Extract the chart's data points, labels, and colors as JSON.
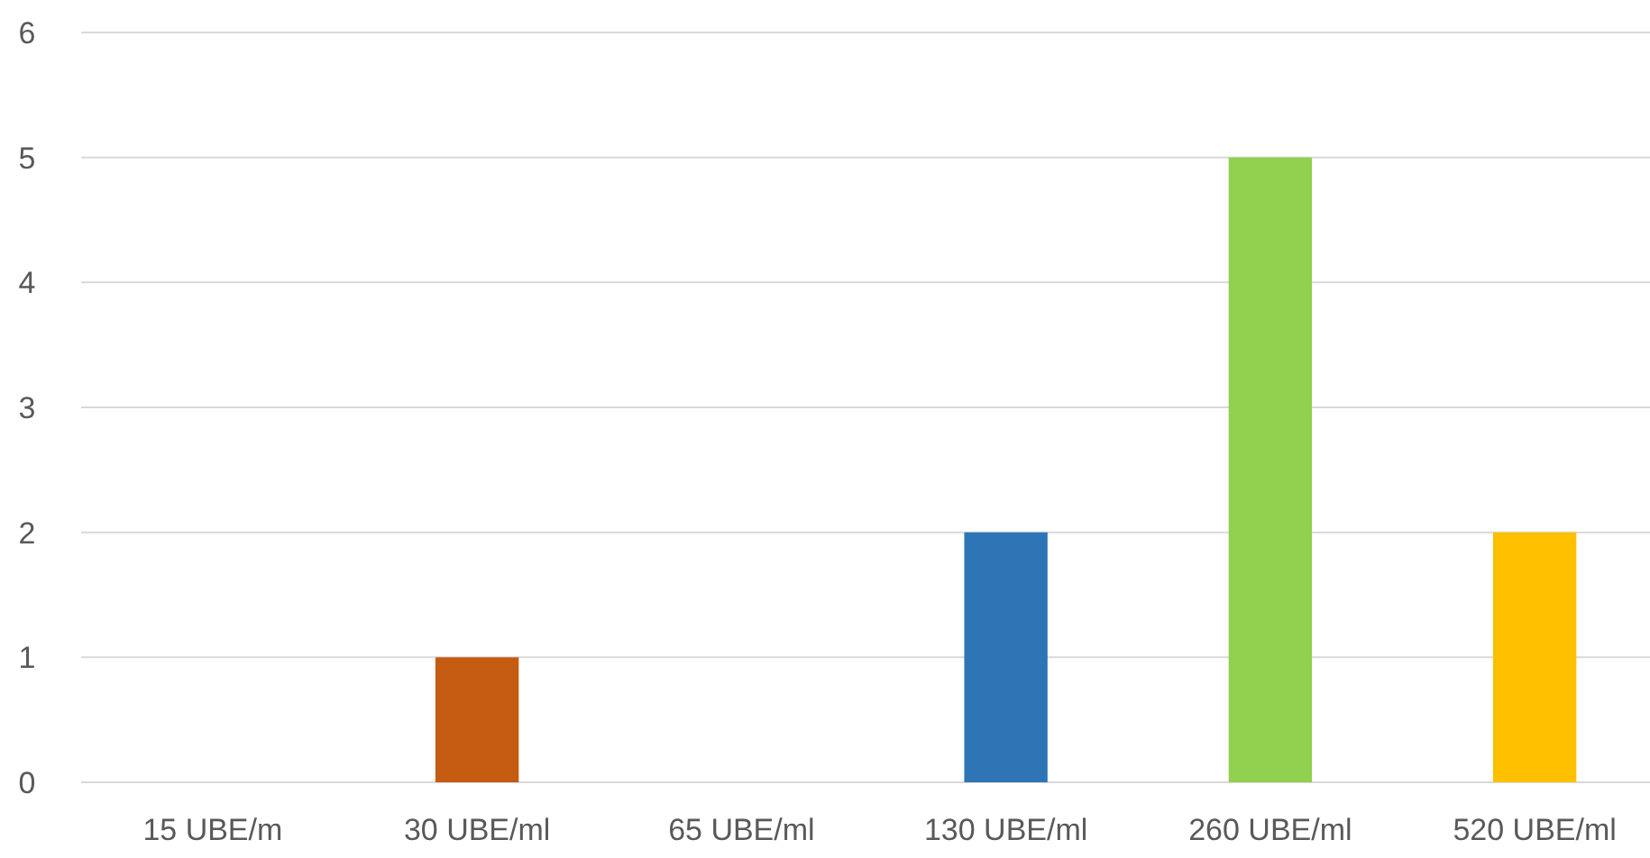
{
  "chart_data": {
    "type": "bar",
    "categories": [
      "15 UBE/m",
      "30 UBE/ml",
      "65 UBE/ml",
      "130 UBE/ml",
      "260 UBE/ml",
      "520 UBE/ml"
    ],
    "values": [
      0,
      1,
      0,
      2,
      5,
      2
    ],
    "colors": [
      "#4472c4",
      "#c55a11",
      "#a5a5a5",
      "#2e75b6",
      "#92d050",
      "#ffc000"
    ],
    "ylim": [
      0,
      6
    ],
    "yticks": [
      0,
      1,
      2,
      3,
      4,
      5,
      6
    ],
    "grid": "y"
  }
}
